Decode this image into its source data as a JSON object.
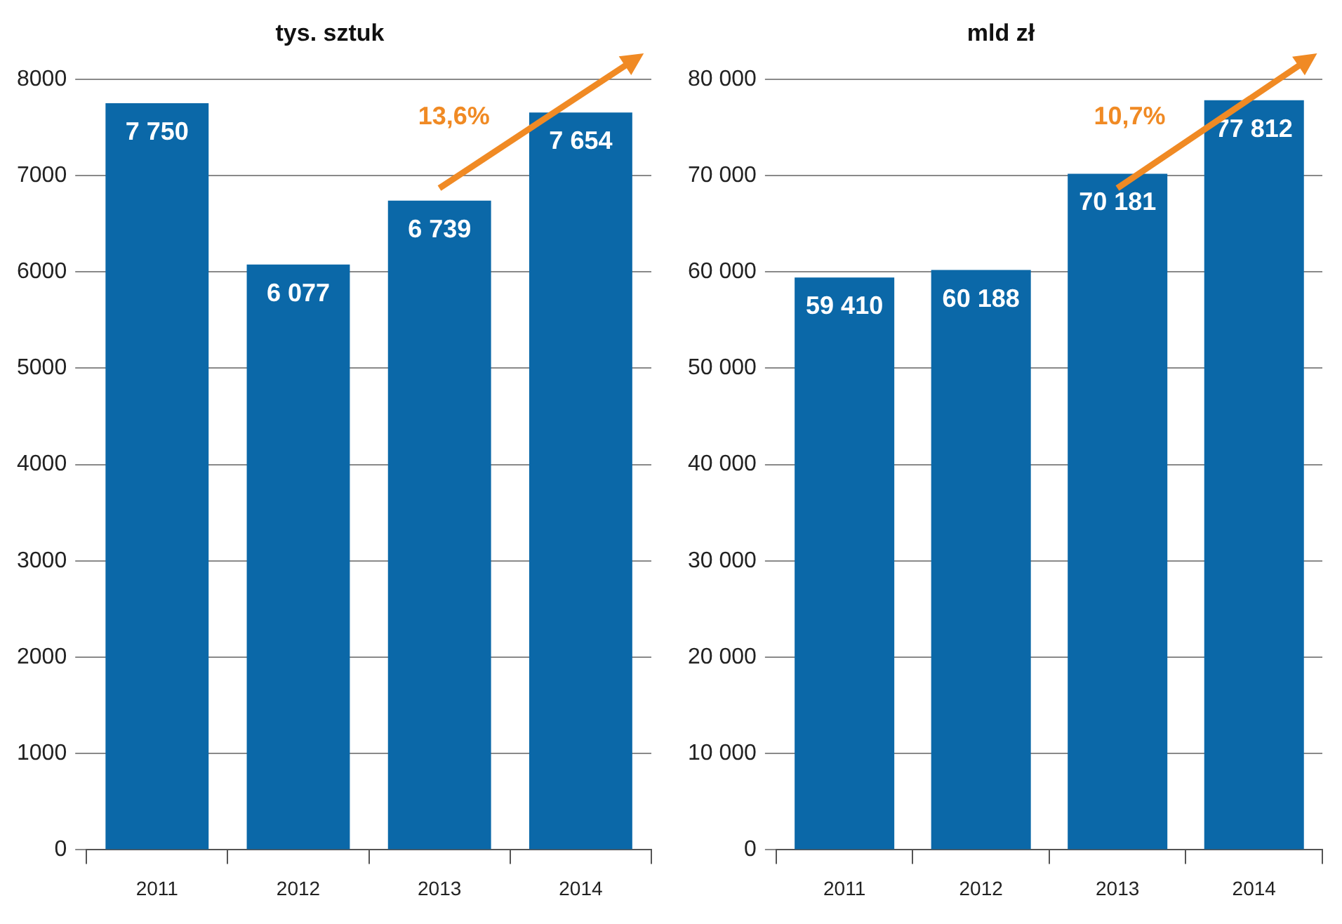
{
  "chart_data": [
    {
      "type": "bar",
      "title": "tys. sztuk",
      "categories": [
        "2011",
        "2012",
        "2013",
        "2014"
      ],
      "values": [
        7750,
        6077,
        6739,
        7654
      ],
      "color": "#0b68a8",
      "value_labels": [
        "7 750",
        "6 077",
        "6 739",
        "7 654"
      ],
      "ylim": [
        0,
        8000
      ],
      "yticks": [
        0,
        1000,
        2000,
        3000,
        4000,
        5000,
        6000,
        7000,
        8000
      ],
      "grid": "y",
      "annotations": [
        "13,6%"
      ]
    },
    {
      "type": "bar",
      "title": "mld zł",
      "categories": [
        "2011",
        "2012",
        "2013",
        "2014"
      ],
      "values": [
        59410,
        60188,
        70181,
        77812
      ],
      "color": "#0b68a8",
      "value_labels": [
        "59 410",
        "60 188",
        "70 181",
        "77 812"
      ],
      "ylim": [
        0,
        80000
      ],
      "yticks": [
        0,
        {
          "value": 10000,
          "label": "10 000"
        },
        {
          "value": 20000,
          "label": "20 000"
        },
        {
          "value": 30000,
          "label": "30 000"
        },
        {
          "value": 40000,
          "label": "40 000"
        },
        {
          "value": 50000,
          "label": "50 000"
        },
        {
          "value": 60000,
          "label": "60 000"
        },
        {
          "value": 70000,
          "label": "70 000"
        },
        {
          "value": 80000,
          "label": "80 000"
        }
      ],
      "grid": "y",
      "annotations": [
        "10,7%"
      ]
    }
  ]
}
